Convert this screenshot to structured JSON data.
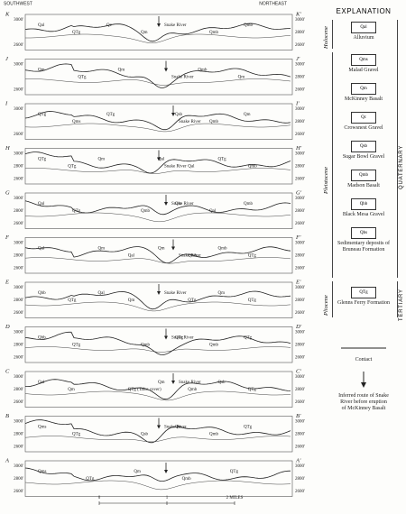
{
  "header": {
    "left": "SOUTHWEST",
    "right": "NORTHEAST"
  },
  "sections": [
    {
      "left": "K",
      "right": "K'",
      "left_ticks": [
        "3000'",
        "2600'"
      ],
      "right_ticks": [
        "3000'",
        "2800'",
        "2600'"
      ],
      "labels": [
        "Qal",
        "QTg",
        "Qc",
        "Qm",
        "Snake River",
        "Qmb",
        "Qmb"
      ]
    },
    {
      "left": "J",
      "right": "J'",
      "left_ticks": [
        "3000'",
        "2600'"
      ],
      "right_ticks": [
        "3000'",
        "2800'",
        "2600'"
      ],
      "labels": [
        "Qm",
        "QTg",
        "Qm",
        "Snake River",
        "Qmb",
        "Qm"
      ]
    },
    {
      "left": "I",
      "right": "I'",
      "left_ticks": [
        "3000'",
        "2600'"
      ],
      "right_ticks": [
        "3000'",
        "2800'",
        "2600'"
      ],
      "labels": [
        "QTg",
        "Qms",
        "QTg",
        "Snake River",
        "Qsb",
        "Qmb",
        "Qm"
      ]
    },
    {
      "left": "H",
      "right": "H'",
      "left_ticks": [
        "3000'",
        "2800'",
        "2600'"
      ],
      "right_ticks": [
        "3000'",
        "2800'",
        "2600'"
      ],
      "labels": [
        "QTg",
        "QTg",
        "Qm",
        "Snake River",
        "Qal",
        "Qal",
        "QTg",
        "Qmb"
      ]
    },
    {
      "left": "G",
      "right": "G'",
      "left_ticks": [
        "3000'",
        "2800'",
        "2600'"
      ],
      "right_ticks": [
        "3000'",
        "2800'",
        "2600'"
      ],
      "labels": [
        "Qal",
        "QTg",
        "Snake River",
        "Qmb",
        "Qm",
        "Qal",
        "Qmb"
      ]
    },
    {
      "left": "F",
      "right": "F'",
      "left_ticks": [
        "3000'",
        "2800'",
        "2600'"
      ],
      "right_ticks": [
        "3000'",
        "2800'",
        "2600'"
      ],
      "labels": [
        "Qal",
        "Snake River",
        "Qm",
        "Qal",
        "Qm",
        "Qmb",
        "Qmb",
        "QTg"
      ]
    },
    {
      "left": "E",
      "right": "E'",
      "left_ticks": [
        "3000'",
        "2800'",
        "2600'"
      ],
      "right_ticks": [
        "3000'",
        "2800'",
        "2600'"
      ],
      "labels": [
        "Qbb",
        "QTg",
        "Qal",
        "Qm",
        "Snake River",
        "QTg",
        "Qm",
        "QTg"
      ]
    },
    {
      "left": "D",
      "right": "D'",
      "left_ticks": [
        "3000'",
        "2800'",
        "2600'"
      ],
      "right_ticks": [
        "3000'",
        "2800'",
        "2600'"
      ],
      "labels": [
        "Qbb",
        "QTg",
        "Snake River",
        "Qmb",
        "QTg",
        "Qmb",
        "QTg"
      ]
    },
    {
      "left": "C",
      "right": "C'",
      "left_ticks": [
        "3000'",
        "2800'",
        "2600'"
      ],
      "right_ticks": [
        "3000'",
        "2800'",
        "2600'"
      ],
      "labels": [
        "Qal",
        "Qm",
        "Snake River",
        "QTg (Talus cover)",
        "Qm",
        "Qmb",
        "Qsb",
        "QTg"
      ]
    },
    {
      "left": "B",
      "right": "B'",
      "left_ticks": [
        "3000'",
        "2800'",
        "2600'"
      ],
      "right_ticks": [
        "3000'",
        "2800'",
        "2600'"
      ],
      "labels": [
        "Qms",
        "QTg",
        "Snake River",
        "Qsb",
        "Qm",
        "Qmb",
        "QTg"
      ]
    },
    {
      "left": "A",
      "right": "A'",
      "left_ticks": [
        "3000'",
        "2800'",
        "2600'"
      ],
      "right_ticks": [
        "3000'",
        "2800'",
        "2600'"
      ],
      "labels": [
        "Qms",
        "QTg",
        "Qm",
        "Qmb",
        "QTg"
      ]
    }
  ],
  "scale": {
    "labels": [
      "0",
      "1",
      "2 MILES"
    ]
  },
  "explanation": {
    "title": "EXPLANATION",
    "units": [
      {
        "symbol": "Qal",
        "description": "Alluvium"
      },
      {
        "symbol": "Qms",
        "description": "Malad Gravel"
      },
      {
        "symbol": "Qm",
        "description": "McKinney Basalt"
      },
      {
        "symbol": "Qc",
        "description": "Crowsnest Gravel"
      },
      {
        "symbol": "Qsb",
        "description": "Sugar Bowl Gravel"
      },
      {
        "symbol": "Qmb",
        "description": "Madson Basalt"
      },
      {
        "symbol": "Qbb",
        "description": "Black Mesa Gravel"
      },
      {
        "symbol": "Qbs",
        "description": "Sedimentary deposits of Bruneau Formation"
      },
      {
        "symbol": "QTg",
        "description": "Glenns Ferry Formation"
      }
    ],
    "epochs": {
      "holocene": "Holocene",
      "pleistocene": "Pleistocene",
      "pliocene": "Pliocene"
    },
    "periods": {
      "quaternary": "QUATERNARY",
      "tertiary": "TERTIARY"
    },
    "contact": "Contact",
    "arrow_note": "Inferred route of Snake River before eruption of McKinney Basalt"
  }
}
